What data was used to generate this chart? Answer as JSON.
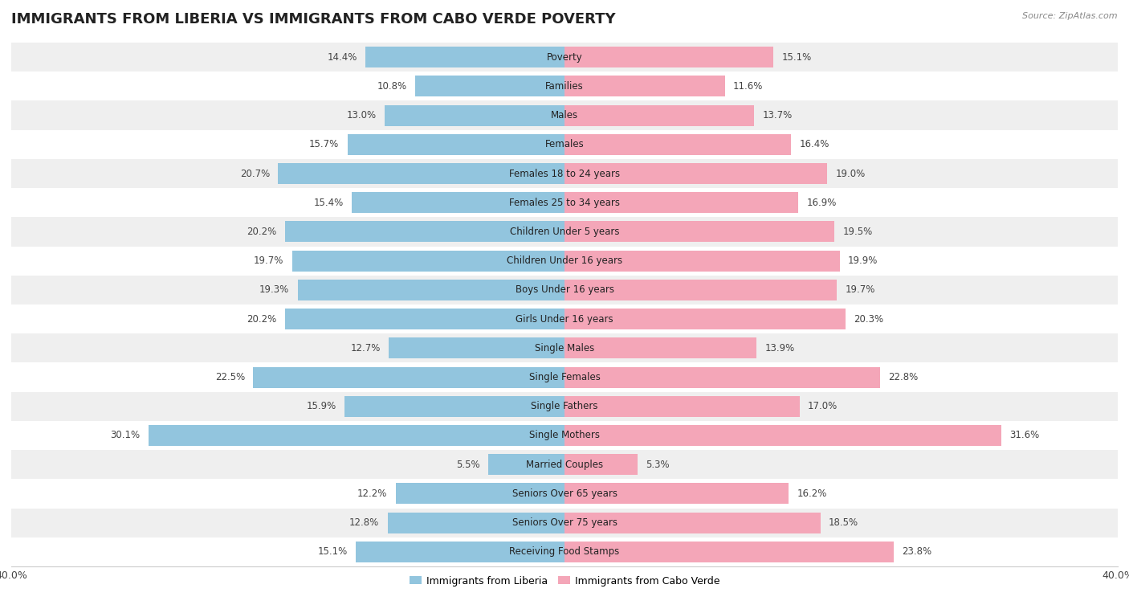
{
  "title": "IMMIGRANTS FROM LIBERIA VS IMMIGRANTS FROM CABO VERDE POVERTY",
  "source": "Source: ZipAtlas.com",
  "categories": [
    "Poverty",
    "Families",
    "Males",
    "Females",
    "Females 18 to 24 years",
    "Females 25 to 34 years",
    "Children Under 5 years",
    "Children Under 16 years",
    "Boys Under 16 years",
    "Girls Under 16 years",
    "Single Males",
    "Single Females",
    "Single Fathers",
    "Single Mothers",
    "Married Couples",
    "Seniors Over 65 years",
    "Seniors Over 75 years",
    "Receiving Food Stamps"
  ],
  "liberia_values": [
    14.4,
    10.8,
    13.0,
    15.7,
    20.7,
    15.4,
    20.2,
    19.7,
    19.3,
    20.2,
    12.7,
    22.5,
    15.9,
    30.1,
    5.5,
    12.2,
    12.8,
    15.1
  ],
  "caboverde_values": [
    15.1,
    11.6,
    13.7,
    16.4,
    19.0,
    16.9,
    19.5,
    19.9,
    19.7,
    20.3,
    13.9,
    22.8,
    17.0,
    31.6,
    5.3,
    16.2,
    18.5,
    23.8
  ],
  "liberia_color": "#92c5de",
  "caboverde_color": "#f4a6b8",
  "liberia_label": "Immigrants from Liberia",
  "caboverde_label": "Immigrants from Cabo Verde",
  "axis_limit": 40.0,
  "bar_height": 0.72,
  "bg_color": "#ffffff",
  "row_even_color": "#efefef",
  "row_odd_color": "#ffffff",
  "label_fontsize": 8.5,
  "value_fontsize": 8.5,
  "title_fontsize": 13
}
